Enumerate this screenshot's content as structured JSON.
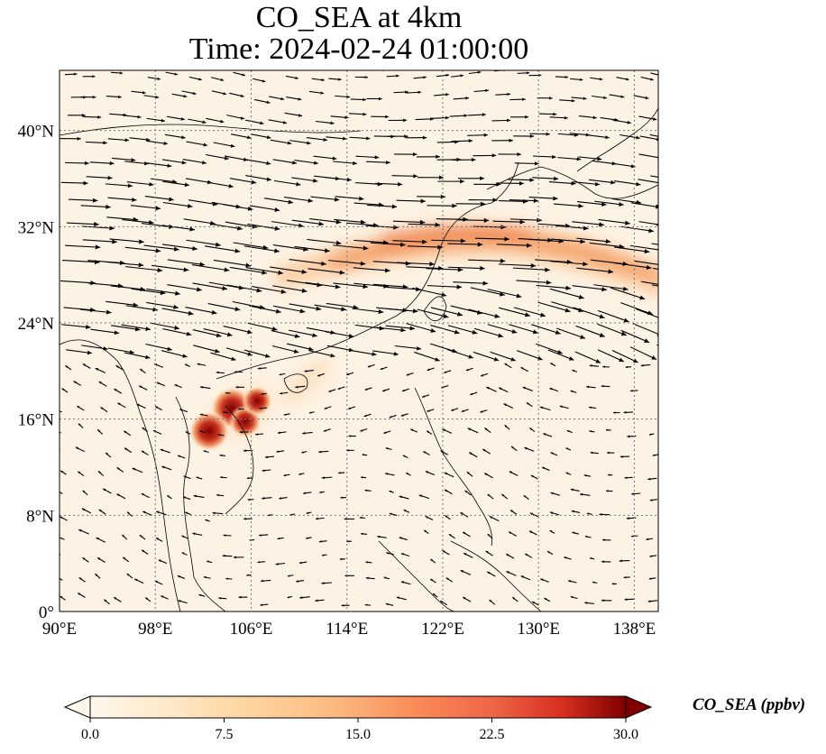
{
  "title": {
    "line1": "CO_SEA at 4km",
    "line2": "Time: 2024-02-24 01:00:00"
  },
  "map": {
    "extent": {
      "lon": [
        90,
        140
      ],
      "lat": [
        0,
        45
      ]
    },
    "lon_ticks": [
      {
        "value": 90,
        "label": "90°E"
      },
      {
        "value": 98,
        "label": "98°E"
      },
      {
        "value": 106,
        "label": "106°E"
      },
      {
        "value": 114,
        "label": "114°E"
      },
      {
        "value": 122,
        "label": "122°E"
      },
      {
        "value": 130,
        "label": "130°E"
      },
      {
        "value": 138,
        "label": "138°E"
      }
    ],
    "lat_ticks": [
      {
        "value": 0,
        "label": "0°"
      },
      {
        "value": 8,
        "label": "8°N"
      },
      {
        "value": 16,
        "label": "16°N"
      },
      {
        "value": 24,
        "label": "24°N"
      },
      {
        "value": 32,
        "label": "32°N"
      },
      {
        "value": 40,
        "label": "40°N"
      }
    ],
    "gridlines": true,
    "hotspots": [
      {
        "lon": 104.4,
        "lat": 16.9,
        "value": 30
      },
      {
        "lon": 102.5,
        "lat": 15.0,
        "value": 28
      },
      {
        "lon": 105.5,
        "lat": 15.8,
        "value": 20
      },
      {
        "lon": 106.5,
        "lat": 17.5,
        "value": 18
      }
    ]
  },
  "colorbar": {
    "label": "CO_SEA (ppbv)",
    "min": 0,
    "max": 30,
    "colormap": "OrRd",
    "extend": "both",
    "ticks": [
      {
        "value": 0,
        "label": "0.0"
      },
      {
        "value": 7.5,
        "label": "7.5"
      },
      {
        "value": 15,
        "label": "15.0"
      },
      {
        "value": 22.5,
        "label": "22.5"
      },
      {
        "value": 30,
        "label": "30.0"
      }
    ]
  },
  "colors": {
    "background": "#fdf3e4",
    "band": "#f08a4b",
    "hotspot": "#a81a12",
    "arrow": "#000000",
    "grid": "#888888"
  }
}
